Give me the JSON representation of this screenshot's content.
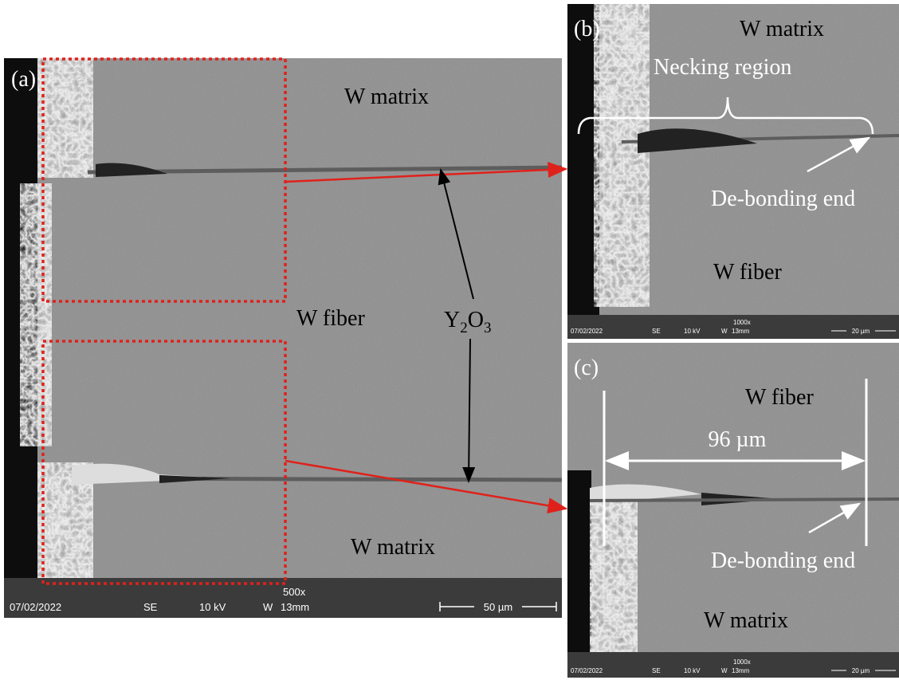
{
  "panels": [
    {
      "label": "(a)",
      "matrix_top": "W matrix",
      "fiber": "W fiber",
      "matrix_bottom": "W matrix",
      "phase": [
        "Y",
        "2",
        "O",
        "3"
      ],
      "info_bar": {
        "date": "07/02/2022",
        "mode": "SE",
        "voltage": "10 kV",
        "detector": "W",
        "wd": "13mm",
        "mag": "500x",
        "scale": "50 µm"
      }
    },
    {
      "label": "(b)",
      "matrix": "W matrix",
      "region": "Necking region",
      "end": "De-bonding end",
      "fiber": "W fiber",
      "info_bar": {
        "date": "07/02/2022",
        "mode": "SE",
        "voltage": "10 kV",
        "detector": "W",
        "wd": "13mm",
        "mag": "1000x",
        "scale": "20 µm"
      }
    },
    {
      "label": "(c)",
      "fiber": "W fiber",
      "length": "96 µm",
      "end": "De-bonding end",
      "matrix": "W matrix",
      "info_bar": {
        "date": "07/02/2022",
        "mode": "SE",
        "voltage": "10 kV",
        "detector": "W",
        "wd": "13mm",
        "mag": "1000x",
        "scale": "20 µm"
      }
    }
  ]
}
